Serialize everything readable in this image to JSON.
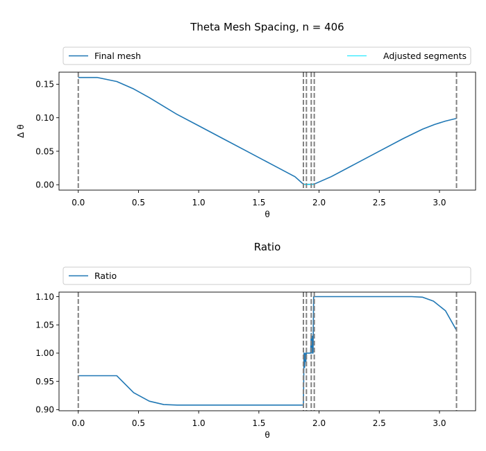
{
  "chart_data": [
    {
      "type": "line",
      "title": "Theta Mesh Spacing, n = 406",
      "xlabel": "θ",
      "ylabel": "Δ θ",
      "xlim": [
        -0.16,
        3.3
      ],
      "ylim": [
        -0.008,
        0.168
      ],
      "xticks": [
        0.0,
        0.5,
        1.0,
        1.5,
        2.0,
        2.5,
        3.0
      ],
      "xtick_labels": [
        "0.0",
        "0.5",
        "1.0",
        "1.5",
        "2.0",
        "2.5",
        "3.0"
      ],
      "yticks": [
        0.0,
        0.05,
        0.1,
        0.15
      ],
      "ytick_labels": [
        "0.00",
        "0.05",
        "0.10",
        "0.15"
      ],
      "grid": false,
      "legend_position": "top, above plot",
      "vlines": [
        0.0,
        1.87,
        1.895,
        1.935,
        1.96,
        3.1416
      ],
      "series": [
        {
          "name": "Final mesh",
          "color": "#1f77b4",
          "x": [
            0.0,
            0.16,
            0.32,
            0.46,
            0.59,
            0.71,
            0.82,
            1.0,
            1.2,
            1.4,
            1.6,
            1.8,
            1.87,
            1.895,
            1.935,
            1.96,
            2.1,
            2.3,
            2.5,
            2.7,
            2.86,
            2.96,
            3.05,
            3.1416
          ],
          "y": [
            0.16,
            0.16,
            0.154,
            0.143,
            0.13,
            0.117,
            0.105,
            0.088,
            0.069,
            0.05,
            0.031,
            0.012,
            0.0008,
            0.0006,
            0.0006,
            0.001,
            0.012,
            0.031,
            0.05,
            0.069,
            0.083,
            0.09,
            0.095,
            0.099
          ]
        },
        {
          "name": "Adjusted segments",
          "color": "#00e5ff",
          "x": [
            1.87,
            1.96
          ],
          "y": [
            0.0005,
            0.0005
          ]
        }
      ]
    },
    {
      "type": "line",
      "title": "Ratio",
      "xlabel": "θ",
      "ylabel": "",
      "xlim": [
        -0.16,
        3.3
      ],
      "ylim": [
        0.898,
        1.108
      ],
      "xticks": [
        0.0,
        0.5,
        1.0,
        1.5,
        2.0,
        2.5,
        3.0
      ],
      "xtick_labels": [
        "0.0",
        "0.5",
        "1.0",
        "1.5",
        "2.0",
        "2.5",
        "3.0"
      ],
      "yticks": [
        0.9,
        0.95,
        1.0,
        1.05,
        1.1
      ],
      "ytick_labels": [
        "0.90",
        "0.95",
        "1.00",
        "1.05",
        "1.10"
      ],
      "grid": false,
      "legend_position": "top, above plot",
      "vlines": [
        0.0,
        1.87,
        1.895,
        1.935,
        1.96,
        3.1416
      ],
      "series": [
        {
          "name": "Ratio",
          "color": "#1f77b4",
          "x": [
            0.0,
            0.16,
            0.32,
            0.46,
            0.59,
            0.71,
            0.82,
            1.0,
            1.5,
            1.87,
            1.875,
            1.88,
            1.885,
            1.89,
            1.895,
            1.93,
            1.935,
            1.94,
            1.945,
            1.95,
            1.955,
            1.96,
            2.1,
            2.5,
            2.77,
            2.86,
            2.95,
            3.05,
            3.14
          ],
          "y": [
            0.96,
            0.96,
            0.96,
            0.93,
            0.915,
            0.909,
            0.908,
            0.908,
            0.908,
            0.908,
            1.0,
            0.975,
            1.0,
            0.985,
            1.0,
            1.0,
            1.035,
            1.0,
            1.03,
            1.0,
            1.1,
            1.1,
            1.1,
            1.1,
            1.1,
            1.099,
            1.092,
            1.075,
            1.041
          ]
        }
      ]
    }
  ]
}
